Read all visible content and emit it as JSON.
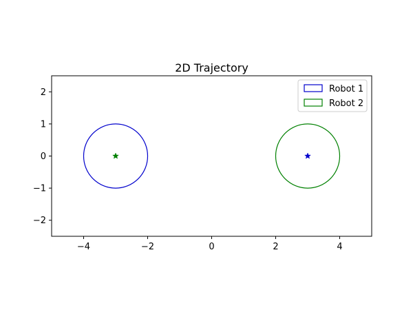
{
  "chart_data": {
    "type": "scatter",
    "title": "2D Trajectory",
    "xlabel": "",
    "ylabel": "",
    "xlim": [
      -5,
      5
    ],
    "ylim": [
      -2.5,
      2.5
    ],
    "x_ticks": [
      -4,
      -2,
      0,
      2,
      4
    ],
    "y_ticks": [
      -2,
      -1,
      0,
      1,
      2
    ],
    "x_tick_labels": [
      "−4",
      "−2",
      "0",
      "2",
      "4"
    ],
    "y_tick_labels": [
      "−2",
      "−1",
      "0",
      "1",
      "2"
    ],
    "grid": false,
    "legend_position": "upper right",
    "series": [
      {
        "name": "Robot 1",
        "color": "#0000cc",
        "circle": {
          "center": [
            -3,
            0
          ],
          "radius": 1
        },
        "marker": {
          "shape": "star",
          "position": [
            3,
            0
          ]
        }
      },
      {
        "name": "Robot 2",
        "color": "#008000",
        "circle": {
          "center": [
            3,
            0
          ],
          "radius": 1
        },
        "marker": {
          "shape": "star",
          "position": [
            -3,
            0
          ]
        }
      }
    ]
  }
}
